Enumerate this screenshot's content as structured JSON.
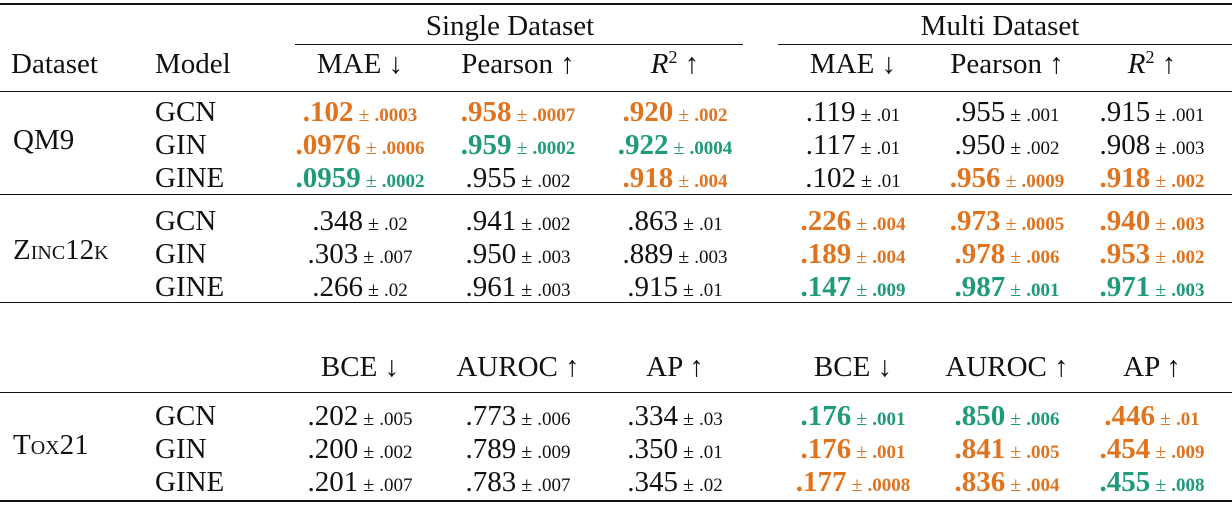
{
  "colors": {
    "best": "#1f9a7a",
    "second": "#e0731e",
    "text": "#111111"
  },
  "header": {
    "group_single": "Single Dataset",
    "group_multi": "Multi Dataset",
    "col_dataset": "Dataset",
    "col_model": "Model",
    "regression_metrics": [
      "MAE ↓",
      "Pearson ↑",
      "R2 ↑",
      "MAE ↓",
      "Pearson ↑",
      "R2 ↑"
    ],
    "classification_metrics": [
      "BCE ↓",
      "AUROC ↑",
      "AP ↑",
      "BCE ↓",
      "AUROC ↑",
      "AP ↑"
    ]
  },
  "sections": [
    {
      "dataset": "QM9",
      "rows": [
        {
          "model": "GCN",
          "cells": [
            {
              "v": ".102",
              "sd": ".0003",
              "s": "orange"
            },
            {
              "v": ".958",
              "sd": ".0007",
              "s": "orange"
            },
            {
              "v": ".920",
              "sd": ".002",
              "s": "orange"
            },
            {
              "v": ".119",
              "sd": ".01",
              "s": ""
            },
            {
              "v": ".955",
              "sd": ".001",
              "s": ""
            },
            {
              "v": ".915",
              "sd": ".001",
              "s": ""
            }
          ]
        },
        {
          "model": "GIN",
          "cells": [
            {
              "v": ".0976",
              "sd": ".0006",
              "s": "orange"
            },
            {
              "v": ".959",
              "sd": ".0002",
              "s": "green"
            },
            {
              "v": ".922",
              "sd": ".0004",
              "s": "green"
            },
            {
              "v": ".117",
              "sd": ".01",
              "s": ""
            },
            {
              "v": ".950",
              "sd": ".002",
              "s": ""
            },
            {
              "v": ".908",
              "sd": ".003",
              "s": ""
            }
          ]
        },
        {
          "model": "GINE",
          "cells": [
            {
              "v": ".0959",
              "sd": ".0002",
              "s": "green"
            },
            {
              "v": ".955",
              "sd": ".002",
              "s": ""
            },
            {
              "v": ".918",
              "sd": ".004",
              "s": "orange"
            },
            {
              "v": ".102",
              "sd": ".01",
              "s": ""
            },
            {
              "v": ".956",
              "sd": ".0009",
              "s": "orange"
            },
            {
              "v": ".918",
              "sd": ".002",
              "s": "orange"
            }
          ]
        }
      ]
    },
    {
      "dataset": "Zinc12k",
      "rows": [
        {
          "model": "GCN",
          "cells": [
            {
              "v": ".348",
              "sd": ".02",
              "s": ""
            },
            {
              "v": ".941",
              "sd": ".002",
              "s": ""
            },
            {
              "v": ".863",
              "sd": ".01",
              "s": ""
            },
            {
              "v": ".226",
              "sd": ".004",
              "s": "orange"
            },
            {
              "v": ".973",
              "sd": ".0005",
              "s": "orange"
            },
            {
              "v": ".940",
              "sd": ".003",
              "s": "orange"
            }
          ]
        },
        {
          "model": "GIN",
          "cells": [
            {
              "v": ".303",
              "sd": ".007",
              "s": ""
            },
            {
              "v": ".950",
              "sd": ".003",
              "s": ""
            },
            {
              "v": ".889",
              "sd": ".003",
              "s": ""
            },
            {
              "v": ".189",
              "sd": ".004",
              "s": "orange"
            },
            {
              "v": ".978",
              "sd": ".006",
              "s": "orange"
            },
            {
              "v": ".953",
              "sd": ".002",
              "s": "orange"
            }
          ]
        },
        {
          "model": "GINE",
          "cells": [
            {
              "v": ".266",
              "sd": ".02",
              "s": ""
            },
            {
              "v": ".961",
              "sd": ".003",
              "s": ""
            },
            {
              "v": ".915",
              "sd": ".01",
              "s": ""
            },
            {
              "v": ".147",
              "sd": ".009",
              "s": "green"
            },
            {
              "v": ".987",
              "sd": ".001",
              "s": "green"
            },
            {
              "v": ".971",
              "sd": ".003",
              "s": "green"
            }
          ]
        }
      ]
    },
    {
      "dataset": "Tox21",
      "rows": [
        {
          "model": "GCN",
          "cells": [
            {
              "v": ".202",
              "sd": ".005",
              "s": ""
            },
            {
              "v": ".773",
              "sd": ".006",
              "s": ""
            },
            {
              "v": ".334",
              "sd": ".03",
              "s": ""
            },
            {
              "v": ".176",
              "sd": ".001",
              "s": "green"
            },
            {
              "v": ".850",
              "sd": ".006",
              "s": "green"
            },
            {
              "v": ".446",
              "sd": ".01",
              "s": "orange"
            }
          ]
        },
        {
          "model": "GIN",
          "cells": [
            {
              "v": ".200",
              "sd": ".002",
              "s": ""
            },
            {
              "v": ".789",
              "sd": ".009",
              "s": ""
            },
            {
              "v": ".350",
              "sd": ".01",
              "s": ""
            },
            {
              "v": ".176",
              "sd": ".001",
              "s": "orange"
            },
            {
              "v": ".841",
              "sd": ".005",
              "s": "orange"
            },
            {
              "v": ".454",
              "sd": ".009",
              "s": "orange"
            }
          ]
        },
        {
          "model": "GINE",
          "cells": [
            {
              "v": ".201",
              "sd": ".007",
              "s": ""
            },
            {
              "v": ".783",
              "sd": ".007",
              "s": ""
            },
            {
              "v": ".345",
              "sd": ".02",
              "s": ""
            },
            {
              "v": ".177",
              "sd": ".0008",
              "s": "orange"
            },
            {
              "v": ".836",
              "sd": ".004",
              "s": "orange"
            },
            {
              "v": ".455",
              "sd": ".008",
              "s": "green"
            }
          ]
        }
      ]
    }
  ]
}
